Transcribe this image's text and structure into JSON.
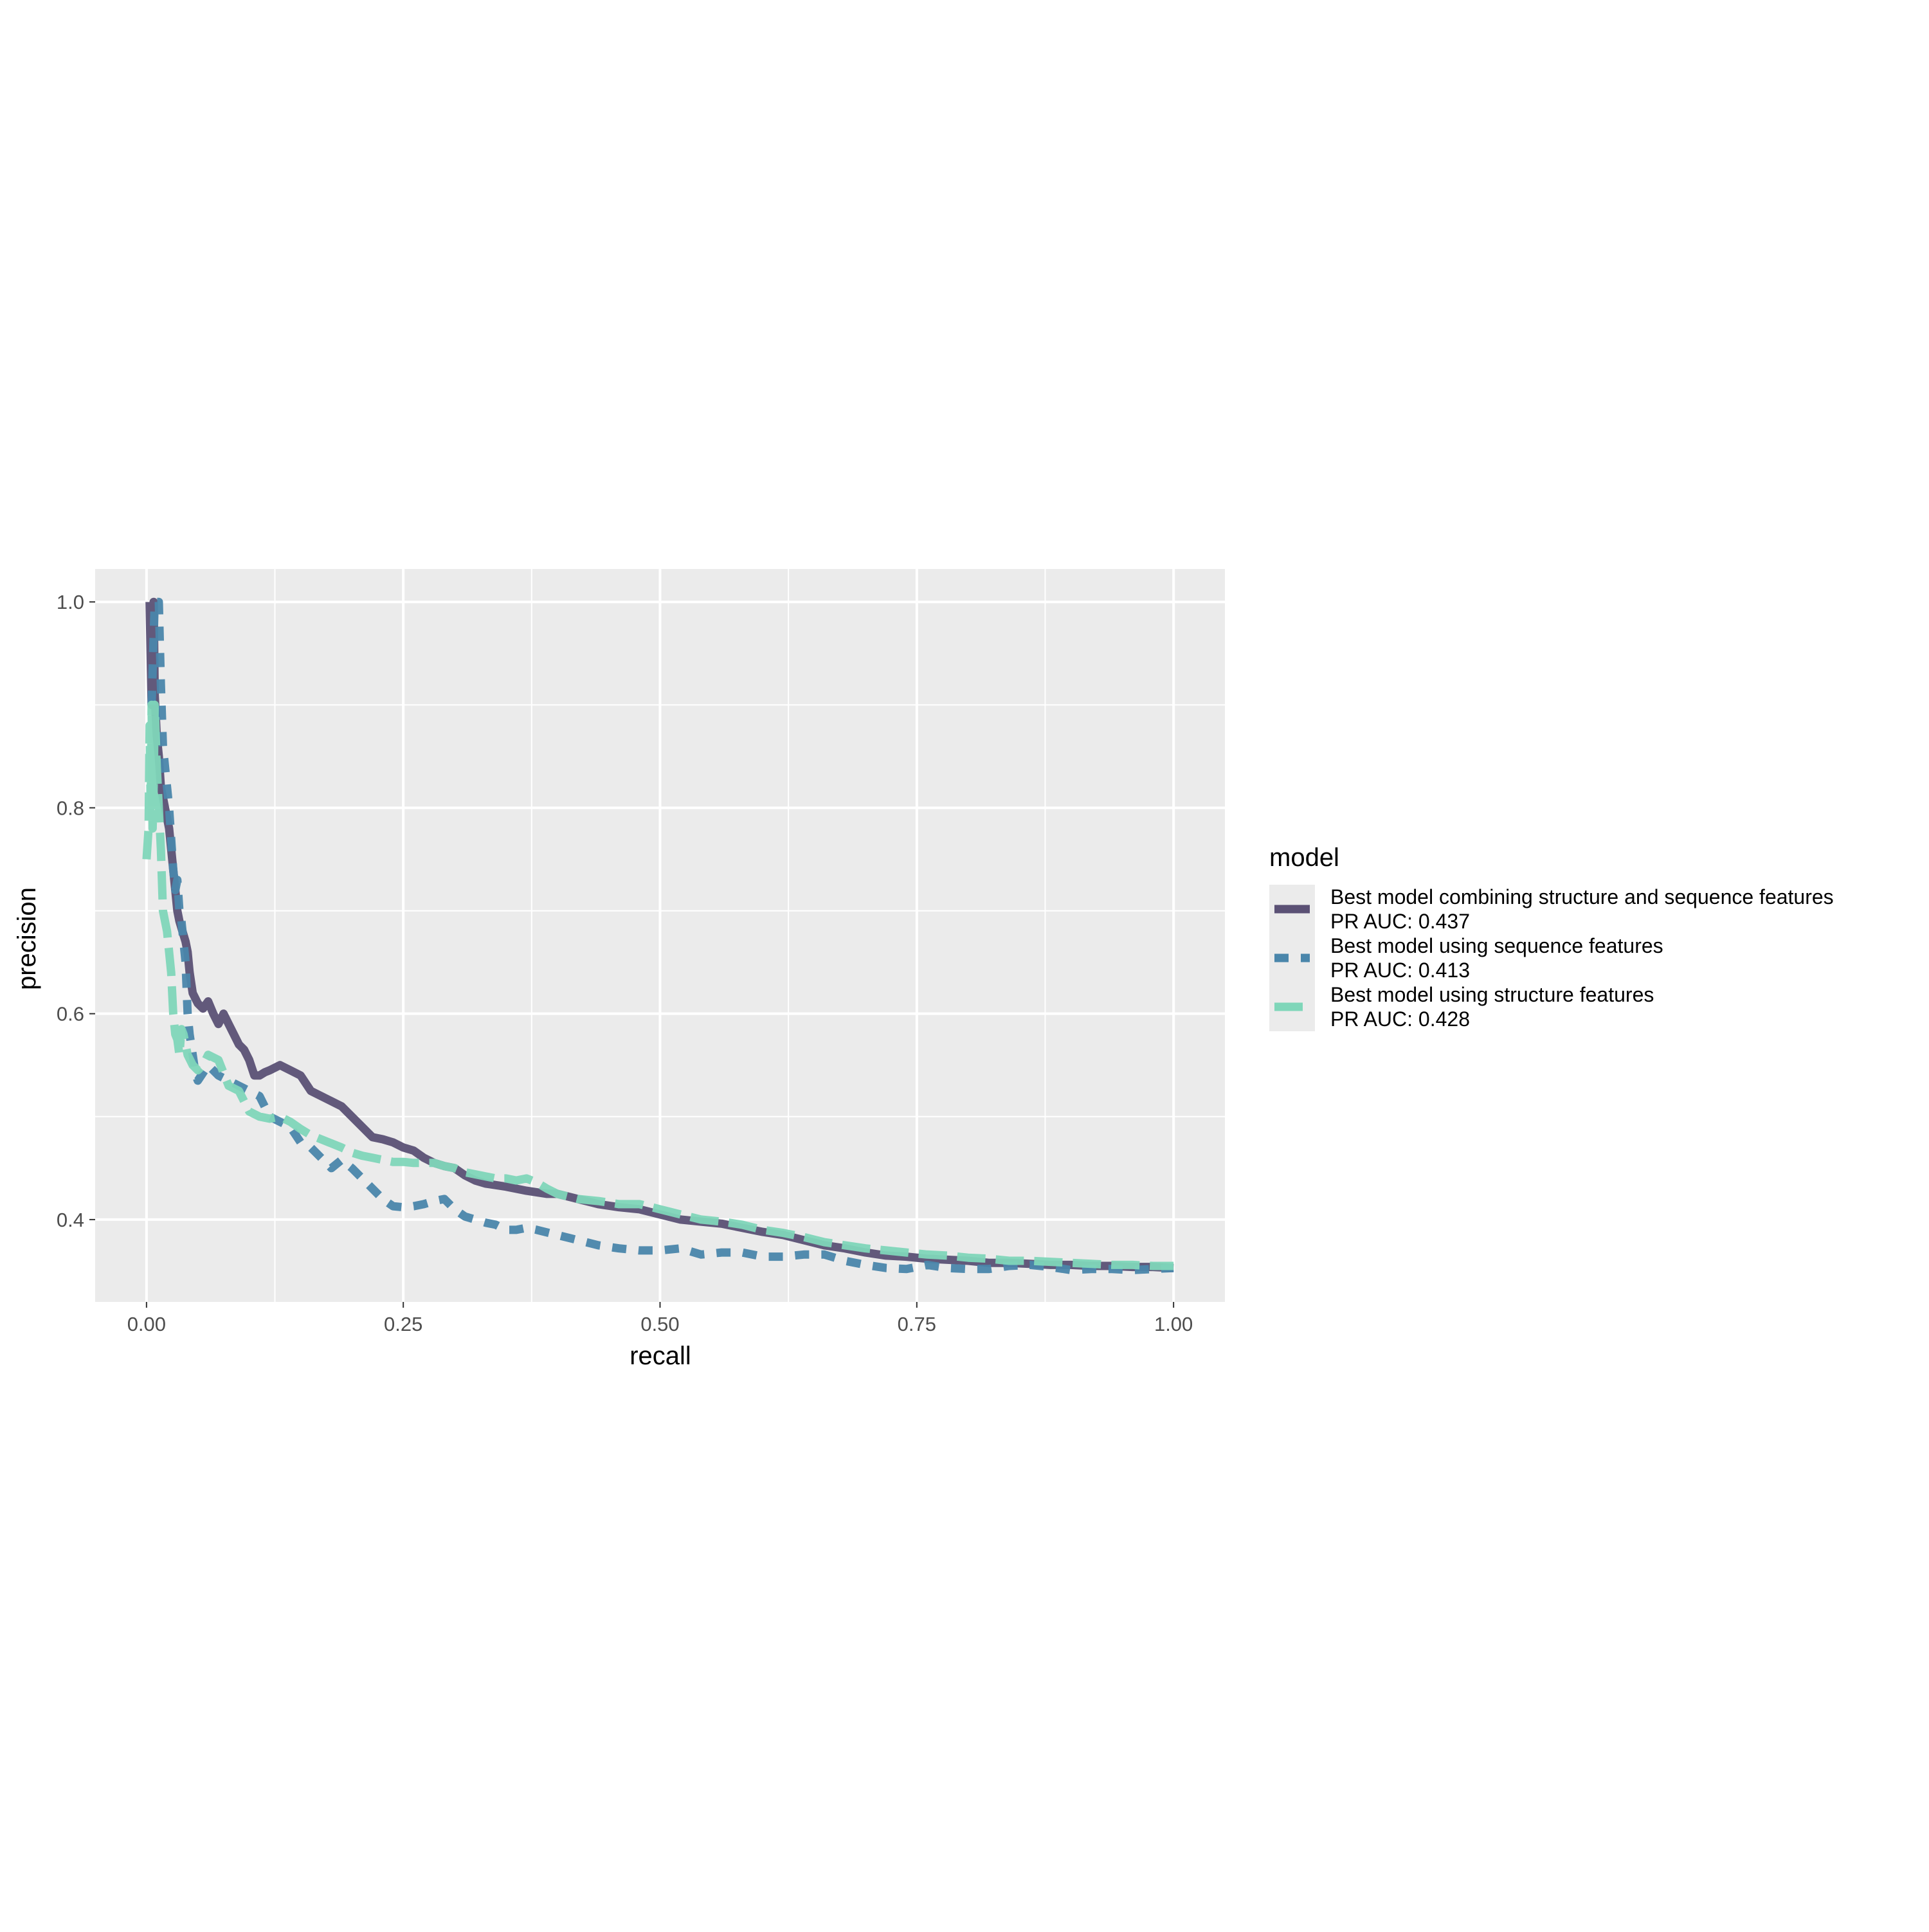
{
  "chart_data": {
    "type": "line",
    "title": "",
    "xlabel": "recall",
    "ylabel": "precision",
    "xlim": [
      -0.05,
      1.05
    ],
    "ylim": [
      0.32,
      1.032
    ],
    "x_ticks": [
      0.0,
      0.25,
      0.5,
      0.75,
      1.0
    ],
    "x_tick_labels": [
      "0.00",
      "0.25",
      "0.50",
      "0.75",
      "1.00"
    ],
    "y_ticks": [
      0.4,
      0.6,
      0.8,
      1.0
    ],
    "y_tick_labels": [
      "0.4",
      "0.6",
      "0.8",
      "1.0"
    ],
    "grid": true,
    "panel_background": "#ebebeb",
    "legend": {
      "title": "model",
      "placement": "right",
      "entries": [
        {
          "line1": "Best model combining structure and sequence features",
          "line2": "PR AUC: 0.437"
        },
        {
          "line1": "Best model using sequence features",
          "line2": "PR AUC: 0.413"
        },
        {
          "line1": "Best model using structure features",
          "line2": "PR AUC: 0.428"
        }
      ]
    },
    "series": [
      {
        "name": "Best model combining structure and sequence features\nPR AUC: 0.437",
        "color": "#5b5175",
        "dash": "solid",
        "points": [
          [
            0.003,
            1.0
          ],
          [
            0.005,
            0.9
          ],
          [
            0.007,
            1.0
          ],
          [
            0.008,
            0.91
          ],
          [
            0.01,
            0.87
          ],
          [
            0.012,
            0.85
          ],
          [
            0.014,
            0.82
          ],
          [
            0.016,
            0.81
          ],
          [
            0.018,
            0.8
          ],
          [
            0.02,
            0.79
          ],
          [
            0.022,
            0.78
          ],
          [
            0.024,
            0.76
          ],
          [
            0.026,
            0.74
          ],
          [
            0.028,
            0.72
          ],
          [
            0.03,
            0.7
          ],
          [
            0.032,
            0.69
          ],
          [
            0.035,
            0.68
          ],
          [
            0.038,
            0.67
          ],
          [
            0.04,
            0.66
          ],
          [
            0.042,
            0.64
          ],
          [
            0.045,
            0.62
          ],
          [
            0.05,
            0.61
          ],
          [
            0.055,
            0.605
          ],
          [
            0.06,
            0.612
          ],
          [
            0.065,
            0.6
          ],
          [
            0.07,
            0.59
          ],
          [
            0.075,
            0.6
          ],
          [
            0.08,
            0.59
          ],
          [
            0.085,
            0.58
          ],
          [
            0.09,
            0.57
          ],
          [
            0.095,
            0.565
          ],
          [
            0.1,
            0.555
          ],
          [
            0.105,
            0.54
          ],
          [
            0.11,
            0.54
          ],
          [
            0.115,
            0.543
          ],
          [
            0.12,
            0.545
          ],
          [
            0.13,
            0.55
          ],
          [
            0.14,
            0.545
          ],
          [
            0.15,
            0.54
          ],
          [
            0.16,
            0.525
          ],
          [
            0.17,
            0.52
          ],
          [
            0.18,
            0.515
          ],
          [
            0.19,
            0.51
          ],
          [
            0.2,
            0.5
          ],
          [
            0.21,
            0.49
          ],
          [
            0.22,
            0.48
          ],
          [
            0.23,
            0.478
          ],
          [
            0.24,
            0.475
          ],
          [
            0.25,
            0.47
          ],
          [
            0.26,
            0.467
          ],
          [
            0.27,
            0.46
          ],
          [
            0.28,
            0.455
          ],
          [
            0.29,
            0.452
          ],
          [
            0.3,
            0.45
          ],
          [
            0.31,
            0.443
          ],
          [
            0.32,
            0.438
          ],
          [
            0.33,
            0.435
          ],
          [
            0.35,
            0.432
          ],
          [
            0.37,
            0.428
          ],
          [
            0.39,
            0.425
          ],
          [
            0.4,
            0.425
          ],
          [
            0.42,
            0.42
          ],
          [
            0.44,
            0.415
          ],
          [
            0.46,
            0.412
          ],
          [
            0.48,
            0.41
          ],
          [
            0.5,
            0.405
          ],
          [
            0.52,
            0.4
          ],
          [
            0.54,
            0.398
          ],
          [
            0.56,
            0.396
          ],
          [
            0.58,
            0.392
          ],
          [
            0.6,
            0.388
          ],
          [
            0.62,
            0.385
          ],
          [
            0.64,
            0.38
          ],
          [
            0.66,
            0.375
          ],
          [
            0.68,
            0.372
          ],
          [
            0.7,
            0.368
          ],
          [
            0.72,
            0.365
          ],
          [
            0.74,
            0.364
          ],
          [
            0.76,
            0.362
          ],
          [
            0.78,
            0.361
          ],
          [
            0.8,
            0.36
          ],
          [
            0.82,
            0.358
          ],
          [
            0.84,
            0.358
          ],
          [
            0.86,
            0.357
          ],
          [
            0.88,
            0.356
          ],
          [
            0.9,
            0.356
          ],
          [
            0.92,
            0.355
          ],
          [
            0.94,
            0.355
          ],
          [
            0.96,
            0.354
          ],
          [
            0.98,
            0.354
          ],
          [
            1.0,
            0.353
          ]
        ]
      },
      {
        "name": "Best model using sequence features\nPR AUC: 0.413",
        "color": "#4a86ab",
        "dash": "dashed",
        "points": [
          [
            0.005,
            0.9
          ],
          [
            0.008,
            1.0
          ],
          [
            0.012,
            1.0
          ],
          [
            0.014,
            0.92
          ],
          [
            0.016,
            0.86
          ],
          [
            0.018,
            0.84
          ],
          [
            0.02,
            0.82
          ],
          [
            0.022,
            0.8
          ],
          [
            0.024,
            0.77
          ],
          [
            0.026,
            0.74
          ],
          [
            0.028,
            0.72
          ],
          [
            0.03,
            0.73
          ],
          [
            0.032,
            0.7
          ],
          [
            0.034,
            0.69
          ],
          [
            0.036,
            0.67
          ],
          [
            0.038,
            0.65
          ],
          [
            0.04,
            0.6
          ],
          [
            0.042,
            0.58
          ],
          [
            0.045,
            0.56
          ],
          [
            0.048,
            0.54
          ],
          [
            0.05,
            0.535
          ],
          [
            0.06,
            0.55
          ],
          [
            0.07,
            0.54
          ],
          [
            0.08,
            0.535
          ],
          [
            0.09,
            0.53
          ],
          [
            0.1,
            0.525
          ],
          [
            0.11,
            0.52
          ],
          [
            0.12,
            0.5
          ],
          [
            0.13,
            0.495
          ],
          [
            0.14,
            0.49
          ],
          [
            0.15,
            0.475
          ],
          [
            0.16,
            0.47
          ],
          [
            0.17,
            0.46
          ],
          [
            0.175,
            0.455
          ],
          [
            0.18,
            0.45
          ],
          [
            0.19,
            0.458
          ],
          [
            0.2,
            0.45
          ],
          [
            0.21,
            0.44
          ],
          [
            0.22,
            0.43
          ],
          [
            0.23,
            0.42
          ],
          [
            0.24,
            0.413
          ],
          [
            0.25,
            0.412
          ],
          [
            0.26,
            0.413
          ],
          [
            0.27,
            0.415
          ],
          [
            0.28,
            0.418
          ],
          [
            0.29,
            0.42
          ],
          [
            0.3,
            0.41
          ],
          [
            0.31,
            0.403
          ],
          [
            0.32,
            0.4
          ],
          [
            0.33,
            0.397
          ],
          [
            0.34,
            0.395
          ],
          [
            0.35,
            0.39
          ],
          [
            0.36,
            0.39
          ],
          [
            0.37,
            0.392
          ],
          [
            0.38,
            0.39
          ],
          [
            0.4,
            0.385
          ],
          [
            0.42,
            0.38
          ],
          [
            0.44,
            0.375
          ],
          [
            0.46,
            0.372
          ],
          [
            0.48,
            0.37
          ],
          [
            0.5,
            0.37
          ],
          [
            0.52,
            0.372
          ],
          [
            0.54,
            0.366
          ],
          [
            0.56,
            0.368
          ],
          [
            0.58,
            0.368
          ],
          [
            0.6,
            0.364
          ],
          [
            0.62,
            0.364
          ],
          [
            0.64,
            0.366
          ],
          [
            0.66,
            0.366
          ],
          [
            0.68,
            0.36
          ],
          [
            0.7,
            0.356
          ],
          [
            0.72,
            0.353
          ],
          [
            0.74,
            0.352
          ],
          [
            0.76,
            0.356
          ],
          [
            0.78,
            0.353
          ],
          [
            0.8,
            0.352
          ],
          [
            0.82,
            0.352
          ],
          [
            0.84,
            0.355
          ],
          [
            0.86,
            0.356
          ],
          [
            0.88,
            0.354
          ],
          [
            0.9,
            0.351
          ],
          [
            0.92,
            0.352
          ],
          [
            0.94,
            0.352
          ],
          [
            0.96,
            0.351
          ],
          [
            0.98,
            0.352
          ],
          [
            1.0,
            0.353
          ]
        ]
      },
      {
        "name": "Best model using structure features\nPR AUC: 0.428",
        "color": "#7fd6b9",
        "dash": "long-dashed",
        "points": [
          [
            0.0,
            0.75
          ],
          [
            0.002,
            0.78
          ],
          [
            0.003,
            0.88
          ],
          [
            0.004,
            0.8
          ],
          [
            0.005,
            0.9
          ],
          [
            0.006,
            0.78
          ],
          [
            0.007,
            0.82
          ],
          [
            0.008,
            0.9
          ],
          [
            0.01,
            0.84
          ],
          [
            0.012,
            0.8
          ],
          [
            0.014,
            0.76
          ],
          [
            0.016,
            0.7
          ],
          [
            0.018,
            0.69
          ],
          [
            0.02,
            0.68
          ],
          [
            0.022,
            0.66
          ],
          [
            0.024,
            0.64
          ],
          [
            0.026,
            0.6
          ],
          [
            0.028,
            0.58
          ],
          [
            0.03,
            0.575
          ],
          [
            0.032,
            0.56
          ],
          [
            0.034,
            0.585
          ],
          [
            0.036,
            0.58
          ],
          [
            0.038,
            0.57
          ],
          [
            0.04,
            0.56
          ],
          [
            0.045,
            0.55
          ],
          [
            0.05,
            0.545
          ],
          [
            0.055,
            0.55
          ],
          [
            0.06,
            0.56
          ],
          [
            0.07,
            0.555
          ],
          [
            0.08,
            0.53
          ],
          [
            0.09,
            0.525
          ],
          [
            0.1,
            0.505
          ],
          [
            0.11,
            0.5
          ],
          [
            0.12,
            0.498
          ],
          [
            0.13,
            0.5
          ],
          [
            0.14,
            0.495
          ],
          [
            0.15,
            0.488
          ],
          [
            0.16,
            0.482
          ],
          [
            0.17,
            0.478
          ],
          [
            0.18,
            0.474
          ],
          [
            0.19,
            0.47
          ],
          [
            0.2,
            0.465
          ],
          [
            0.21,
            0.462
          ],
          [
            0.22,
            0.46
          ],
          [
            0.23,
            0.458
          ],
          [
            0.24,
            0.456
          ],
          [
            0.25,
            0.456
          ],
          [
            0.26,
            0.455
          ],
          [
            0.27,
            0.455
          ],
          [
            0.28,
            0.455
          ],
          [
            0.29,
            0.452
          ],
          [
            0.3,
            0.45
          ],
          [
            0.31,
            0.446
          ],
          [
            0.32,
            0.444
          ],
          [
            0.33,
            0.442
          ],
          [
            0.34,
            0.44
          ],
          [
            0.35,
            0.44
          ],
          [
            0.36,
            0.438
          ],
          [
            0.37,
            0.44
          ],
          [
            0.38,
            0.436
          ],
          [
            0.39,
            0.43
          ],
          [
            0.4,
            0.425
          ],
          [
            0.42,
            0.42
          ],
          [
            0.44,
            0.418
          ],
          [
            0.46,
            0.415
          ],
          [
            0.48,
            0.415
          ],
          [
            0.5,
            0.41
          ],
          [
            0.52,
            0.405
          ],
          [
            0.54,
            0.4
          ],
          [
            0.56,
            0.398
          ],
          [
            0.58,
            0.395
          ],
          [
            0.6,
            0.39
          ],
          [
            0.62,
            0.387
          ],
          [
            0.64,
            0.383
          ],
          [
            0.66,
            0.378
          ],
          [
            0.68,
            0.375
          ],
          [
            0.7,
            0.372
          ],
          [
            0.72,
            0.37
          ],
          [
            0.74,
            0.368
          ],
          [
            0.76,
            0.366
          ],
          [
            0.78,
            0.365
          ],
          [
            0.8,
            0.363
          ],
          [
            0.82,
            0.362
          ],
          [
            0.84,
            0.36
          ],
          [
            0.86,
            0.36
          ],
          [
            0.88,
            0.359
          ],
          [
            0.9,
            0.358
          ],
          [
            0.92,
            0.357
          ],
          [
            0.94,
            0.356
          ],
          [
            0.96,
            0.356
          ],
          [
            0.98,
            0.355
          ],
          [
            1.0,
            0.355
          ]
        ]
      }
    ]
  }
}
